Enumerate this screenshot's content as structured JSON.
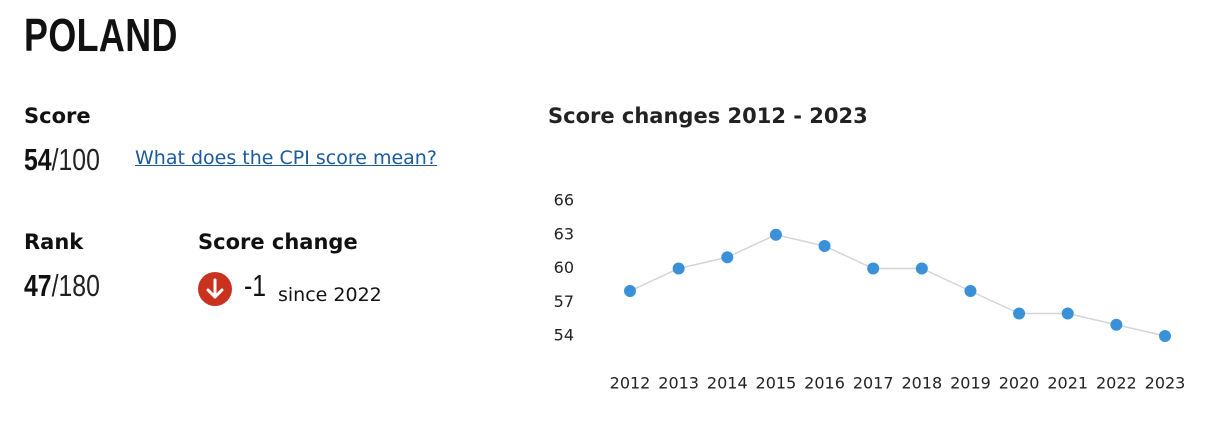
{
  "header": {
    "title": "POLAND"
  },
  "score": {
    "label": "Score",
    "value": 54,
    "out_of": "/100",
    "link": "What does the CPI score mean?"
  },
  "rank": {
    "label": "Rank",
    "value": 47,
    "out_of": "/180"
  },
  "score_change": {
    "label": "Score change",
    "value": -1,
    "since": "since 2022"
  },
  "chart_data": {
    "type": "line",
    "title": "Score changes 2012 - 2023",
    "categories": [
      "2012",
      "2013",
      "2014",
      "2015",
      "2016",
      "2017",
      "2018",
      "2019",
      "2020",
      "2021",
      "2022",
      "2023"
    ],
    "series": [
      {
        "name": "Score",
        "color": "#3a91d8",
        "values": [
          58,
          60,
          61,
          63,
          62,
          60,
          60,
          58,
          56,
          56,
          55,
          54
        ]
      }
    ],
    "line_color": "#d4d4d4",
    "ylim": [
      54,
      66
    ],
    "yticks": [
      54,
      57,
      60,
      63,
      66
    ],
    "grid": false
  }
}
